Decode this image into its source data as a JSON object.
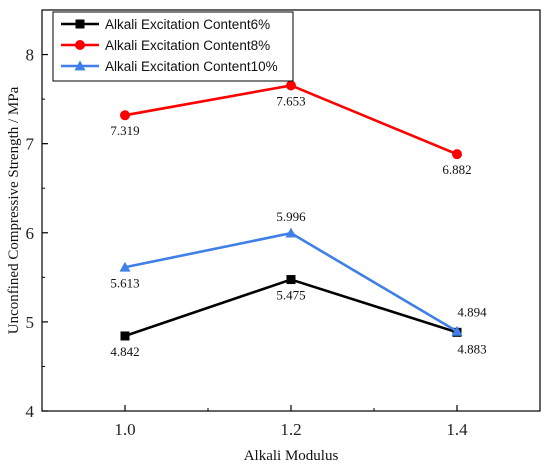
{
  "chart_data": {
    "type": "line",
    "title": "",
    "xlabel": "Alkali Modulus",
    "ylabel": "Unconfined Compressive Strength / MPa",
    "x": [
      1.0,
      1.2,
      1.4
    ],
    "x_tick_labels": [
      "1.0",
      "1.2",
      "1.4"
    ],
    "xlim": [
      0.9,
      1.5
    ],
    "ylim": [
      4,
      8.5
    ],
    "y_ticks": [
      4,
      5,
      6,
      7,
      8
    ],
    "y_tick_labels": [
      "4",
      "5",
      "6",
      "7",
      "8"
    ],
    "grid": false,
    "legend_position": "top-left",
    "series": [
      {
        "name": "Alkali Excitation Content6%",
        "values": [
          4.842,
          5.475,
          4.883
        ],
        "labels": [
          "4.842",
          "5.475",
          "4.883"
        ],
        "color": "#000000",
        "marker": "square"
      },
      {
        "name": "Alkali Excitation Content8%",
        "values": [
          7.319,
          7.653,
          6.882
        ],
        "labels": [
          "7.319",
          "7.653",
          "6.882"
        ],
        "color": "#ff0000",
        "marker": "circle"
      },
      {
        "name": "Alkali Excitation Content10%",
        "values": [
          5.613,
          5.996,
          4.894
        ],
        "labels": [
          "5.613",
          "5.996",
          "4.894"
        ],
        "color": "#3f7fe6",
        "marker": "triangle"
      }
    ]
  }
}
